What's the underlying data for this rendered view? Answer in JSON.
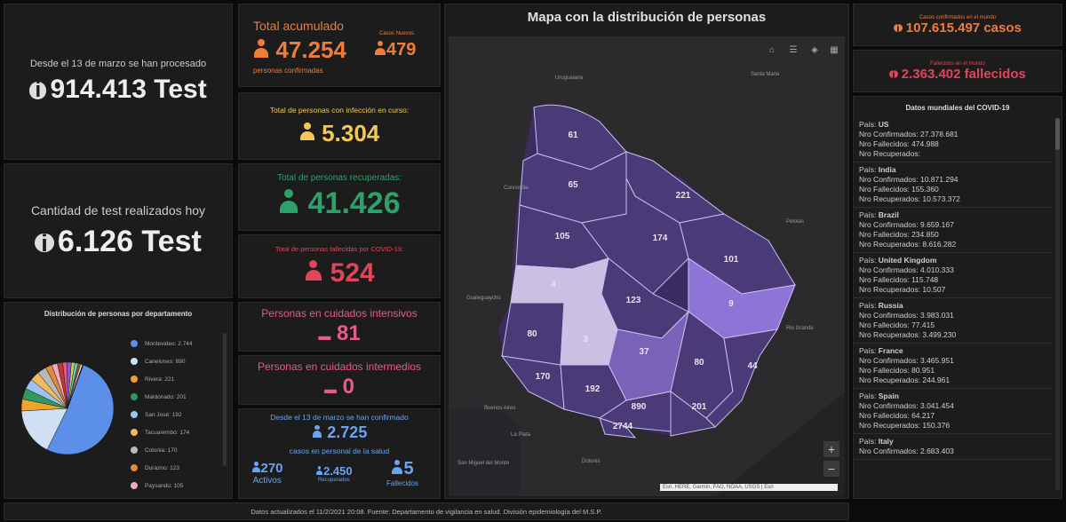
{
  "tests_total": {
    "label": "Desde el 13 de marzo se han procesado",
    "value": "914.413 Test"
  },
  "tests_today": {
    "label": "Cantidad de test realizados hoy",
    "value": "6.126 Test"
  },
  "pie": {
    "title": "Distribución de personas por departamento",
    "items": [
      {
        "label": "Montevideo: 2.744",
        "value": 2744,
        "color": "#5b8fe8"
      },
      {
        "label": "Canelones: 890",
        "value": 890,
        "color": "#cfe0f5"
      },
      {
        "label": "Rivera: 221",
        "value": 221,
        "color": "#f0a32a"
      },
      {
        "label": "Maldonado: 201",
        "value": 201,
        "color": "#2e9a5e"
      },
      {
        "label": "San José: 192",
        "value": 192,
        "color": "#9fc3f0"
      },
      {
        "label": "Tacuarembó: 174",
        "value": 174,
        "color": "#f4b860"
      },
      {
        "label": "Colonia: 170",
        "value": 170,
        "color": "#b9b9b9"
      },
      {
        "label": "Durazno: 123",
        "value": 123,
        "color": "#e08a3a"
      },
      {
        "label": "Paysandú: 105",
        "value": 105,
        "color": "#f0a8c8"
      },
      {
        "label": "",
        "value": 101,
        "color": "#c0392b"
      },
      {
        "label": "",
        "value": 80,
        "color": "#e05a8a"
      },
      {
        "label": "",
        "value": 80,
        "color": "#8a5ad0"
      },
      {
        "label": "",
        "value": 65,
        "color": "#d0d050"
      },
      {
        "label": "",
        "value": 61,
        "color": "#5ad0c0"
      },
      {
        "label": "",
        "value": 44,
        "color": "#a05030"
      },
      {
        "label": "",
        "value": 37,
        "color": "#e0e0e0"
      },
      {
        "label": "",
        "value": 9,
        "color": "#ff70a0"
      },
      {
        "label": "",
        "value": 4,
        "color": "#70ff90"
      },
      {
        "label": "",
        "value": 3,
        "color": "#ffd070"
      }
    ]
  },
  "total_acumulado": {
    "label": "Total acumulado",
    "value": "47.254",
    "sublabel": "personas confirmadas"
  },
  "casos_nuevos": {
    "label": "Casos Nuevos",
    "value": "479"
  },
  "en_curso": {
    "label": "Total de personas con infección en curso:",
    "value": "5.304"
  },
  "recuperados": {
    "label": "Total de personas recuperadas:",
    "value": "41.426"
  },
  "fallecidos": {
    "label": "Total de personas fallecidas por COVID-19:",
    "value": "524"
  },
  "cuidados_intensivos": {
    "label": "Personas en cuidados intensivos",
    "value": "81"
  },
  "cuidados_intermedios": {
    "label": "Personas en cuidados intermedios",
    "value": "0"
  },
  "salud": {
    "label": "Desde el 13 de marzo se han confirmado",
    "value": "2.725",
    "sublabel": "casos en personal de la salud",
    "activos": {
      "value": "270",
      "label": "Activos"
    },
    "recuperados": {
      "value": "2.450",
      "label": "Recuperados"
    },
    "fallecidos": {
      "value": "5",
      "label": "Fallecidos"
    }
  },
  "map": {
    "title": "Mapa con la distribución de personas",
    "attribution": "Esri, HERE, Garmin, FAO, NOAA, USGS | Esri",
    "departments": {
      "artigas": "61",
      "salto": "65",
      "paysandu": "105",
      "rivera": "221",
      "tacuarembo": "174",
      "cerro_largo": "101",
      "rio_negro": "4",
      "durazno": "123",
      "treinta_y_tres": "9",
      "soriano": "80",
      "flores": "3",
      "florida": "37",
      "lavalleja": "80",
      "rocha": "44",
      "colonia": "170",
      "san_jose": "192",
      "canelones": "890",
      "maldonado": "201",
      "montevideo": "2744"
    },
    "cities": {
      "uruguaiana": "Uruguaiana",
      "santa_maria": "Santa Maria",
      "concordia": "Concordia",
      "gualeguaychu": "Gualeguaychú",
      "buenos_aires": "Buenos Aires",
      "la_plata": "La Plata",
      "san_miguel": "San Miguel del Monte",
      "dolores": "Dolores",
      "pelotas": "Pelotas",
      "rio_grande": "Rio Grande"
    }
  },
  "world_cases": {
    "label": "Casos confirmados en el mundo",
    "value": "107.615.497 casos"
  },
  "world_deaths": {
    "label": "Fallecidos en el mundo",
    "value": "2.363.402 fallecidos"
  },
  "world": {
    "title": "Datos mundiales del COVID-19",
    "country_prefix": "País:",
    "confirmed_prefix": "Nro Confirmados:",
    "deaths_prefix": "Nro Fallecidos:",
    "recovered_prefix": "Nro Recuperados:",
    "countries": [
      {
        "name": "US",
        "confirmed": "27.378.681",
        "deaths": "474.988",
        "recovered": ""
      },
      {
        "name": "India",
        "confirmed": "10.871.294",
        "deaths": "155.360",
        "recovered": "10.573.372"
      },
      {
        "name": "Brazil",
        "confirmed": "9.659.167",
        "deaths": "234.850",
        "recovered": "8.616.282"
      },
      {
        "name": "United Kingdom",
        "confirmed": "4.010.333",
        "deaths": "115.748",
        "recovered": "10.507"
      },
      {
        "name": "Russia",
        "confirmed": "3.983.031",
        "deaths": "77.415",
        "recovered": "3.499.230"
      },
      {
        "name": "France",
        "confirmed": "3.465.951",
        "deaths": "80.951",
        "recovered": "244.961"
      },
      {
        "name": "Spain",
        "confirmed": "3.041.454",
        "deaths": "64.217",
        "recovered": "150.376"
      },
      {
        "name": "Italy",
        "confirmed": "2.683.403",
        "deaths": "",
        "recovered": ""
      }
    ]
  },
  "footer": "Datos actualizados el 11/2/2021 20:08. Fuente: Departamento de vigilancia en salud. División epidemiología del M.S.P.",
  "colors": {
    "orange": "#f07c3a",
    "yellow": "#f2c85b",
    "green": "#2ea06a",
    "red": "#e0465a",
    "pink": "#e85a8c",
    "blue": "#6aa4f0",
    "map_dark": "#4a3a78",
    "map_mid": "#8f74d8",
    "map_light": "#c9c0e3"
  }
}
